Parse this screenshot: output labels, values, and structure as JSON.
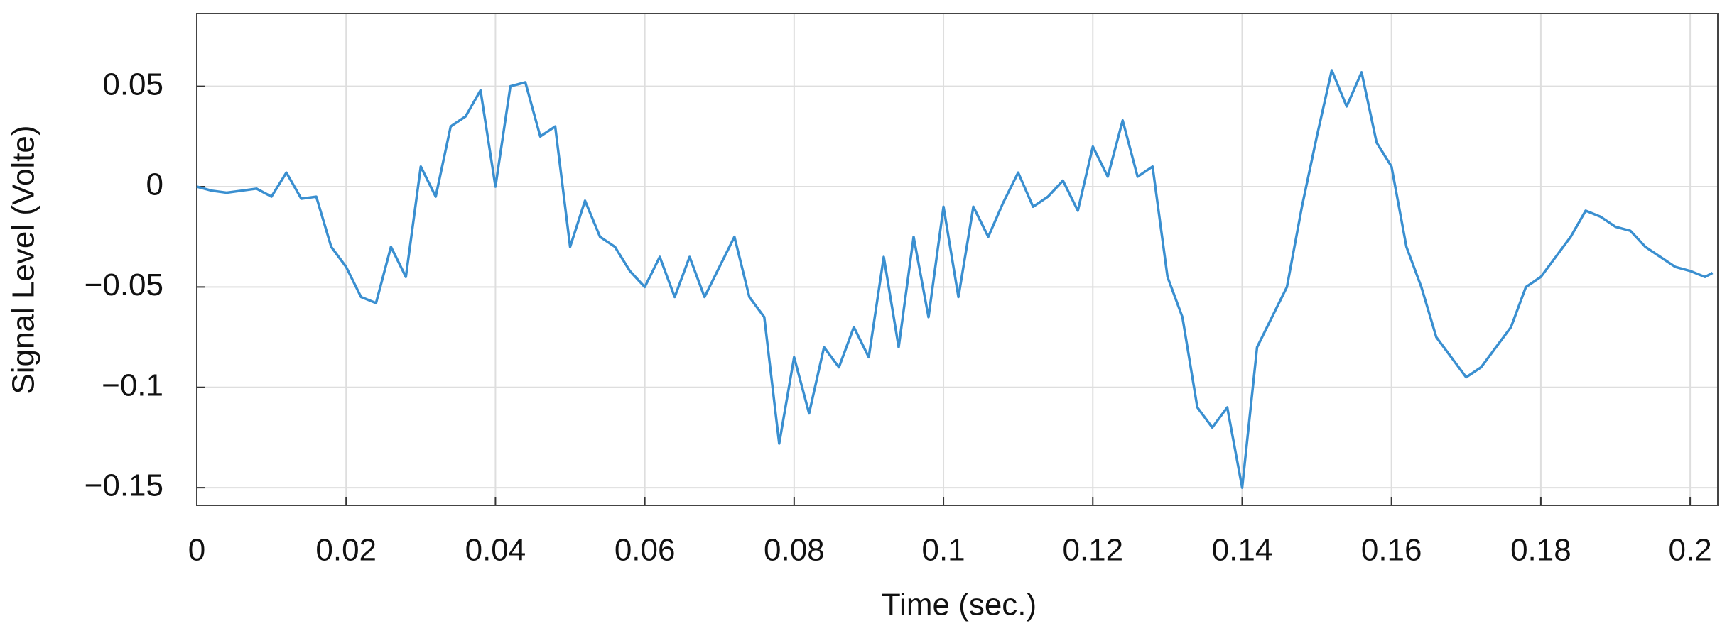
{
  "chart_data": {
    "type": "line",
    "xlabel": "Time (sec.)",
    "ylabel": "Signal Level (Volte)",
    "x": [
      0,
      0.002,
      0.004,
      0.006,
      0.008,
      0.01,
      0.012,
      0.014,
      0.016,
      0.018,
      0.02,
      0.022,
      0.024,
      0.026,
      0.028,
      0.03,
      0.032,
      0.034,
      0.036,
      0.038,
      0.04,
      0.042,
      0.044,
      0.046,
      0.048,
      0.05,
      0.052,
      0.054,
      0.056,
      0.058,
      0.06,
      0.062,
      0.064,
      0.066,
      0.068,
      0.07,
      0.072,
      0.074,
      0.076,
      0.078,
      0.08,
      0.082,
      0.084,
      0.086,
      0.088,
      0.09,
      0.092,
      0.094,
      0.096,
      0.098,
      0.1,
      0.102,
      0.104,
      0.106,
      0.108,
      0.11,
      0.112,
      0.114,
      0.116,
      0.118,
      0.12,
      0.122,
      0.124,
      0.126,
      0.128,
      0.13,
      0.132,
      0.134,
      0.136,
      0.138,
      0.14,
      0.142,
      0.144,
      0.146,
      0.148,
      0.15,
      0.152,
      0.154,
      0.156,
      0.158,
      0.16,
      0.162,
      0.164,
      0.166,
      0.168,
      0.17,
      0.172,
      0.174,
      0.176,
      0.178,
      0.18,
      0.182,
      0.184,
      0.186,
      0.188,
      0.19,
      0.192,
      0.194,
      0.196,
      0.198,
      0.2,
      0.202,
      0.203
    ],
    "series": [
      {
        "name": "Signal",
        "color": "#3a8fd0",
        "values": [
          0,
          -0.002,
          -0.003,
          -0.002,
          -0.001,
          -0.005,
          0.007,
          -0.006,
          -0.005,
          -0.03,
          -0.04,
          -0.055,
          -0.058,
          -0.03,
          -0.045,
          0.01,
          -0.005,
          0.03,
          0.035,
          0.048,
          0.0,
          0.05,
          0.052,
          0.025,
          0.03,
          -0.03,
          -0.007,
          -0.025,
          -0.03,
          -0.042,
          -0.05,
          -0.035,
          -0.055,
          -0.035,
          -0.055,
          -0.04,
          -0.025,
          -0.055,
          -0.065,
          -0.128,
          -0.085,
          -0.113,
          -0.08,
          -0.09,
          -0.07,
          -0.085,
          -0.035,
          -0.08,
          -0.025,
          -0.065,
          -0.01,
          -0.055,
          -0.01,
          -0.025,
          -0.008,
          0.007,
          -0.01,
          -0.005,
          0.003,
          -0.012,
          0.02,
          0.005,
          0.033,
          0.005,
          0.01,
          -0.045,
          -0.065,
          -0.11,
          -0.12,
          -0.11,
          -0.15,
          -0.08,
          -0.065,
          -0.05,
          -0.01,
          0.025,
          0.058,
          0.04,
          0.057,
          0.022,
          0.01,
          -0.03,
          -0.05,
          -0.075,
          -0.085,
          -0.095,
          -0.09,
          -0.08,
          -0.07,
          -0.05,
          -0.045,
          -0.035,
          -0.025,
          -0.012,
          -0.015,
          -0.02,
          -0.022,
          -0.03,
          -0.035,
          -0.04,
          -0.042,
          -0.045,
          -0.043
        ]
      }
    ],
    "xlim": [
      0,
      0.2037
    ],
    "ylim": [
      -0.1588,
      0.0863
    ],
    "xticks": [
      0,
      0.02,
      0.04,
      0.06,
      0.08,
      0.1,
      0.12,
      0.14,
      0.16,
      0.18,
      0.2
    ],
    "yticks": [
      {
        "value": -0.15,
        "label": "−0.15"
      },
      {
        "value": -0.1,
        "label": "−0.1"
      },
      {
        "value": -0.05,
        "label": "−0.05"
      },
      0,
      0.05
    ],
    "grid": true
  }
}
